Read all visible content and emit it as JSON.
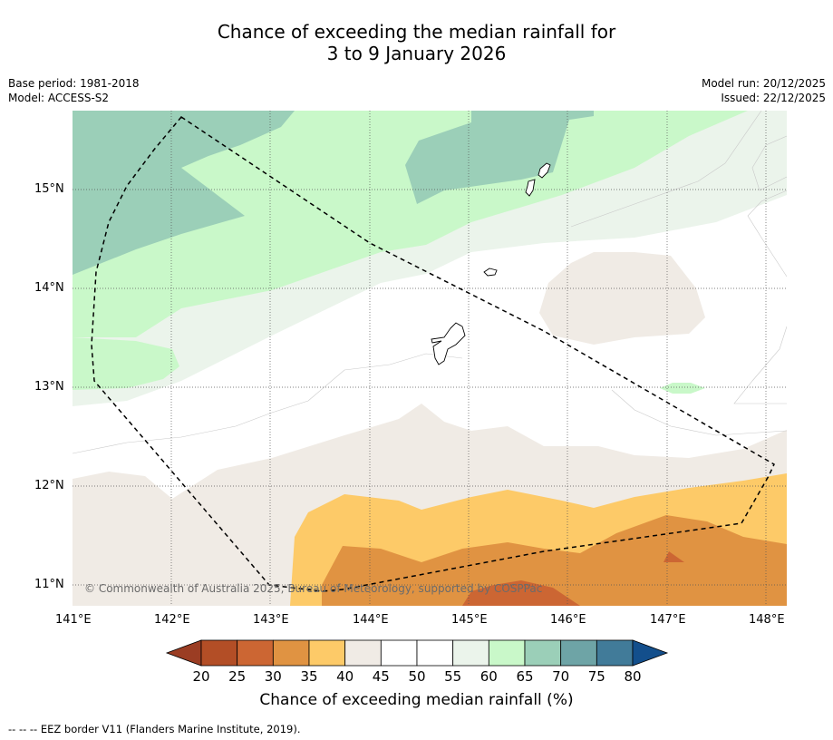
{
  "title": {
    "line1": "Chance of exceeding the median rainfall for",
    "line2": "3 to 9 January 2026"
  },
  "meta_left": {
    "base_period": "Base period: 1981-2018",
    "model": "Model: ACCESS-S2"
  },
  "meta_right": {
    "model_run": "Model run: 20/12/2025",
    "issued": "Issued: 22/12/2025"
  },
  "map": {
    "lon_labels": [
      "141°E",
      "142°E",
      "143°E",
      "144°E",
      "145°E",
      "146°E",
      "147°E",
      "148°E"
    ],
    "lat_labels": [
      "15°N",
      "14°N",
      "13°N",
      "12°N",
      "11°N"
    ],
    "copyright": "© Commonwealth of Australia 2025, Bureau of Meteorology, supported by COSPPac"
  },
  "colorbar": {
    "ticks": [
      "20",
      "25",
      "30",
      "35",
      "40",
      "45",
      "50",
      "55",
      "60",
      "65",
      "70",
      "75",
      "80"
    ],
    "colors": [
      "#b34e26",
      "#cc6633",
      "#e09342",
      "#fdca68",
      "#f0ebe5",
      "#ffffff",
      "#ffffff",
      "#ebf4eb",
      "#c9f8c9",
      "#9bcfb8",
      "#6ea4a6",
      "#417b99"
    ],
    "under_color": "#9b3d23",
    "over_color": "#134f8c",
    "title": "Chance of exceeding median rainfall (%)"
  },
  "footer": "--  --  -- EEZ border V11 (Flanders Marine Institute, 2019)."
}
